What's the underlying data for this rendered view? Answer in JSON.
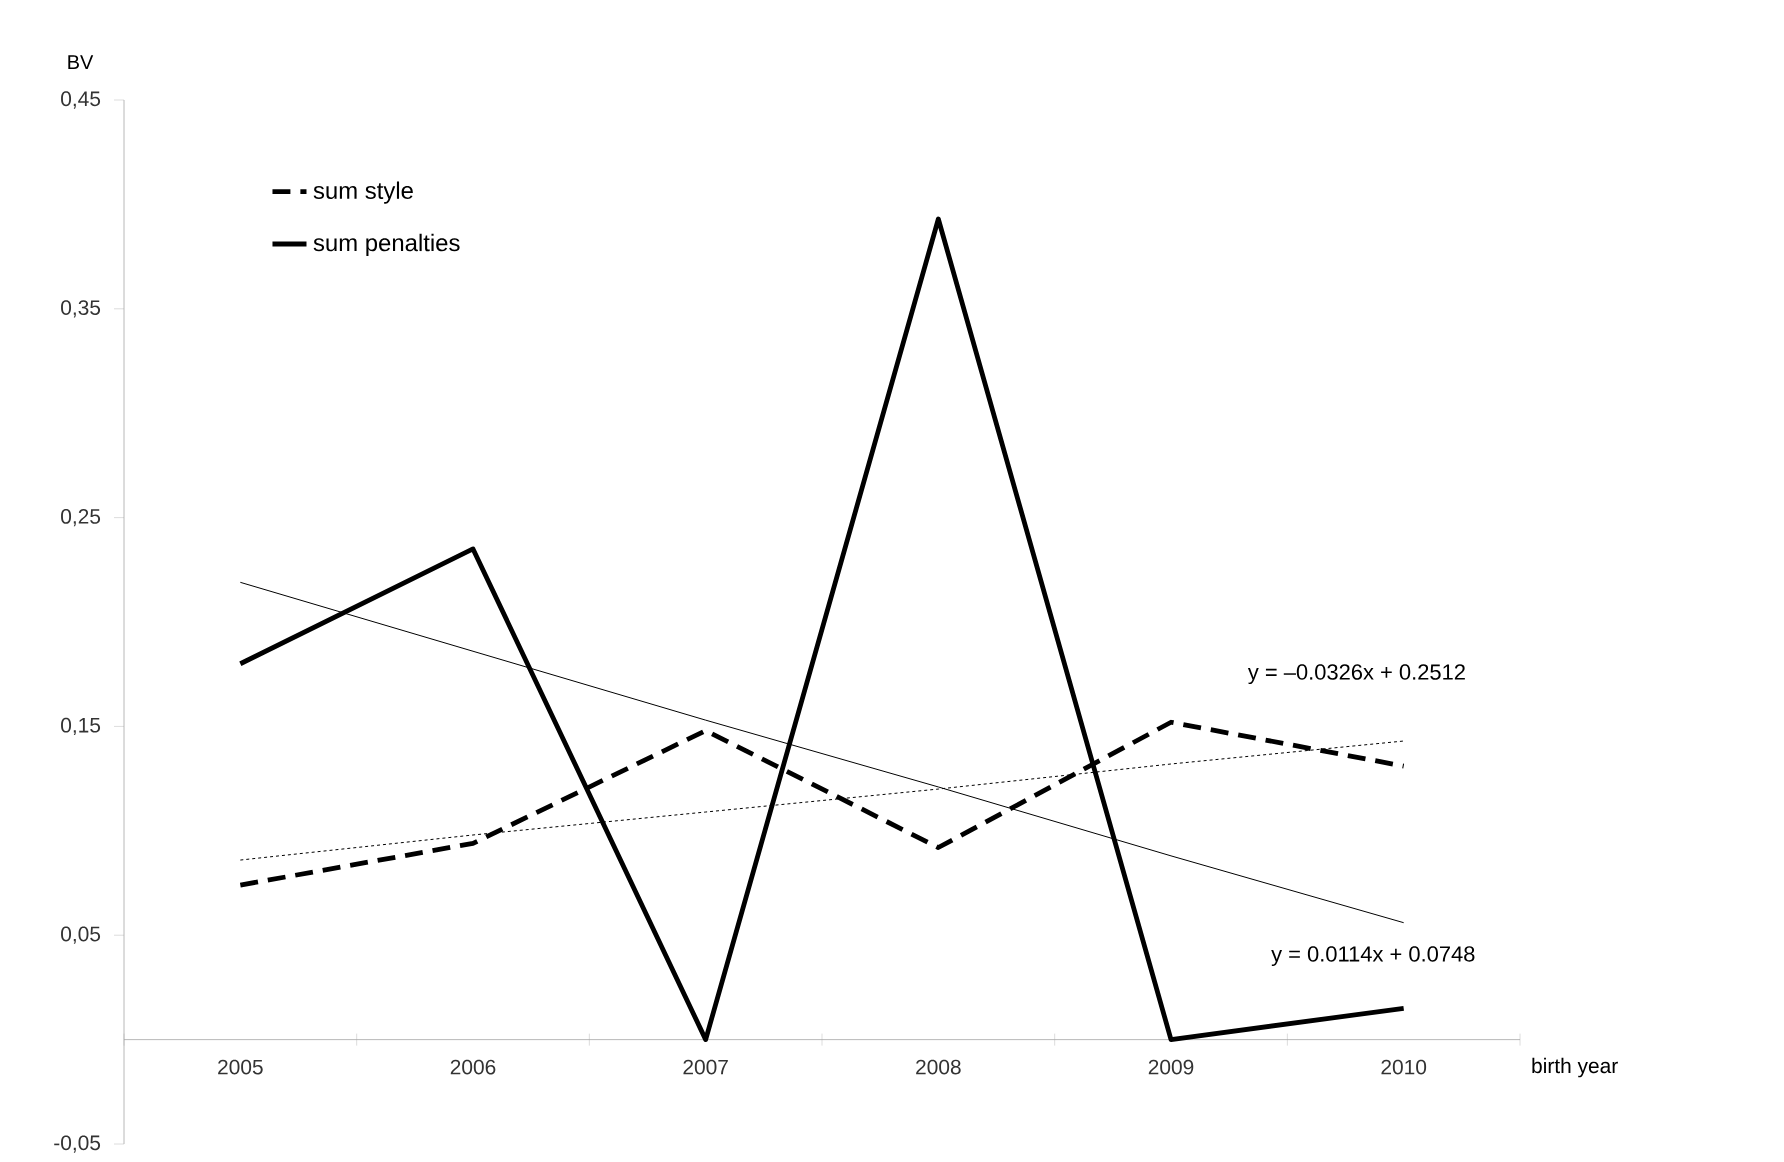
{
  "chart_data": {
    "type": "line",
    "xlabel": "birth year",
    "ylabel": "BV",
    "categories": [
      "2005",
      "2006",
      "2007",
      "2008",
      "2009",
      "2010"
    ],
    "series": [
      {
        "name": "sum style",
        "color": "#000000",
        "line_style": "dashed",
        "values": [
          0.074,
          0.094,
          0.148,
          0.092,
          0.152,
          0.131
        ]
      },
      {
        "name": "sum penalties",
        "color": "#000000",
        "line_style": "solid",
        "values": [
          0.18,
          0.235,
          0,
          0.393,
          0,
          0.015
        ]
      },
      {
        "color": "#000000",
        "line_style": "solid",
        "values": [
          0.219,
          0.186,
          0.153,
          0.121,
          0.088,
          0.056
        ]
      },
      {
        "color": "#000000",
        "line_style": "dotted",
        "values": [
          0.086,
          0.098,
          0.109,
          0.12,
          0.132,
          0.143
        ]
      }
    ],
    "ylim": [
      -0.05,
      0.45
    ],
    "yticks": [
      {
        "value": -0.05,
        "label": "-0,05"
      },
      {
        "value": 0.05,
        "label": "0,05"
      },
      {
        "value": 0.15,
        "label": "0,15"
      },
      {
        "value": 0.25,
        "label": "0,25"
      },
      {
        "value": 0.35,
        "label": "0,35"
      },
      {
        "value": 0.45,
        "label": "0,45"
      }
    ],
    "annotations": [
      "y = –0.0326x + 0.2512",
      "y = 0.0114x + 0.0748"
    ],
    "legend": "top left",
    "grid": false,
    "marker": "none"
  }
}
